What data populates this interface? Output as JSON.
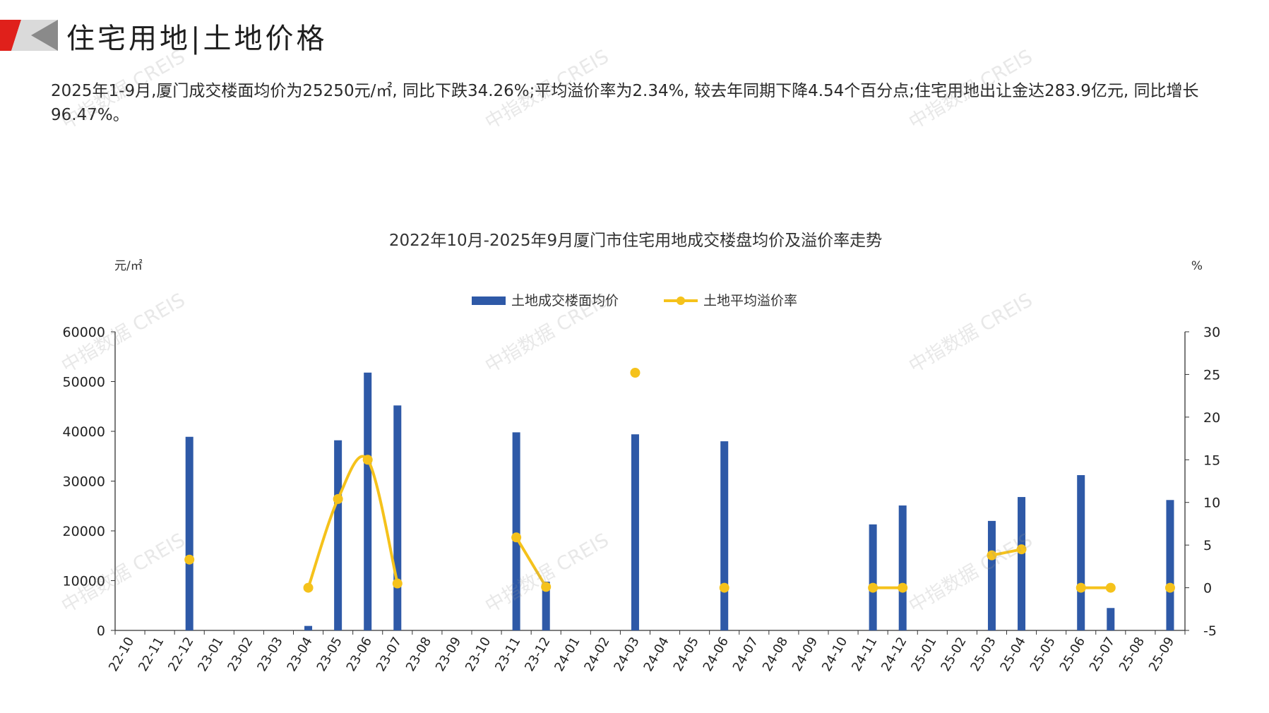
{
  "header": {
    "title": "住宅用地|土地价格"
  },
  "summary": {
    "text": "2025年1-9月,厦门成交楼面均价为25250元/㎡, 同比下跌34.26%;平均溢价率为2.34%, 较去年同期下降4.54个百分点;住宅用地出让金达283.9亿元, 同比增长96.47%。"
  },
  "watermark": {
    "text": "中指数据 CREIS"
  },
  "colors": {
    "bar": "#2E59A7",
    "line": "#F5C21B",
    "axis": "#333333",
    "brand_red": "#E0201B",
    "brand_gray": "#8A8A8A"
  },
  "chart_data": {
    "type": "bar",
    "title": "2022年10月-2025年9月厦门市住宅用地成交楼盘均价及溢价率走势",
    "y_left_unit": "元/㎡",
    "y_right_unit": "%",
    "ylim_left": [
      0,
      60000
    ],
    "ylim_right": [
      -5,
      30
    ],
    "yticks_left": [
      "0",
      "10000",
      "20000",
      "30000",
      "40000",
      "50000",
      "60000"
    ],
    "yticks_right": [
      "-5",
      "0",
      "5",
      "10",
      "15",
      "20",
      "25",
      "30"
    ],
    "legend_position": "top-center",
    "grid": false,
    "categories": [
      "22-10",
      "22-11",
      "22-12",
      "23-01",
      "23-02",
      "23-03",
      "23-04",
      "23-05",
      "23-06",
      "23-07",
      "23-08",
      "23-09",
      "23-10",
      "23-11",
      "23-12",
      "24-01",
      "24-02",
      "24-03",
      "24-04",
      "24-05",
      "24-06",
      "24-07",
      "24-08",
      "24-09",
      "24-10",
      "24-11",
      "24-12",
      "25-01",
      "25-02",
      "25-03",
      "25-04",
      "25-05",
      "25-06",
      "25-07",
      "25-08",
      "25-09"
    ],
    "series": [
      {
        "name": "土地成交楼面均价",
        "kind": "bar",
        "axis": "left",
        "values": [
          null,
          null,
          38900,
          null,
          null,
          null,
          900,
          38200,
          51800,
          45200,
          null,
          null,
          null,
          39800,
          9800,
          null,
          null,
          39400,
          null,
          null,
          38000,
          null,
          null,
          null,
          null,
          21300,
          25100,
          null,
          null,
          22000,
          26800,
          null,
          31200,
          4500,
          null,
          26200
        ]
      },
      {
        "name": "土地平均溢价率",
        "kind": "line",
        "axis": "right",
        "values": [
          null,
          null,
          3.3,
          null,
          null,
          null,
          0.0,
          10.4,
          15.0,
          0.5,
          null,
          null,
          null,
          5.9,
          0.1,
          null,
          null,
          25.2,
          null,
          null,
          0.0,
          null,
          null,
          null,
          null,
          0.0,
          0.0,
          null,
          null,
          3.8,
          4.5,
          null,
          0.0,
          0.0,
          null,
          0.0
        ]
      }
    ]
  }
}
